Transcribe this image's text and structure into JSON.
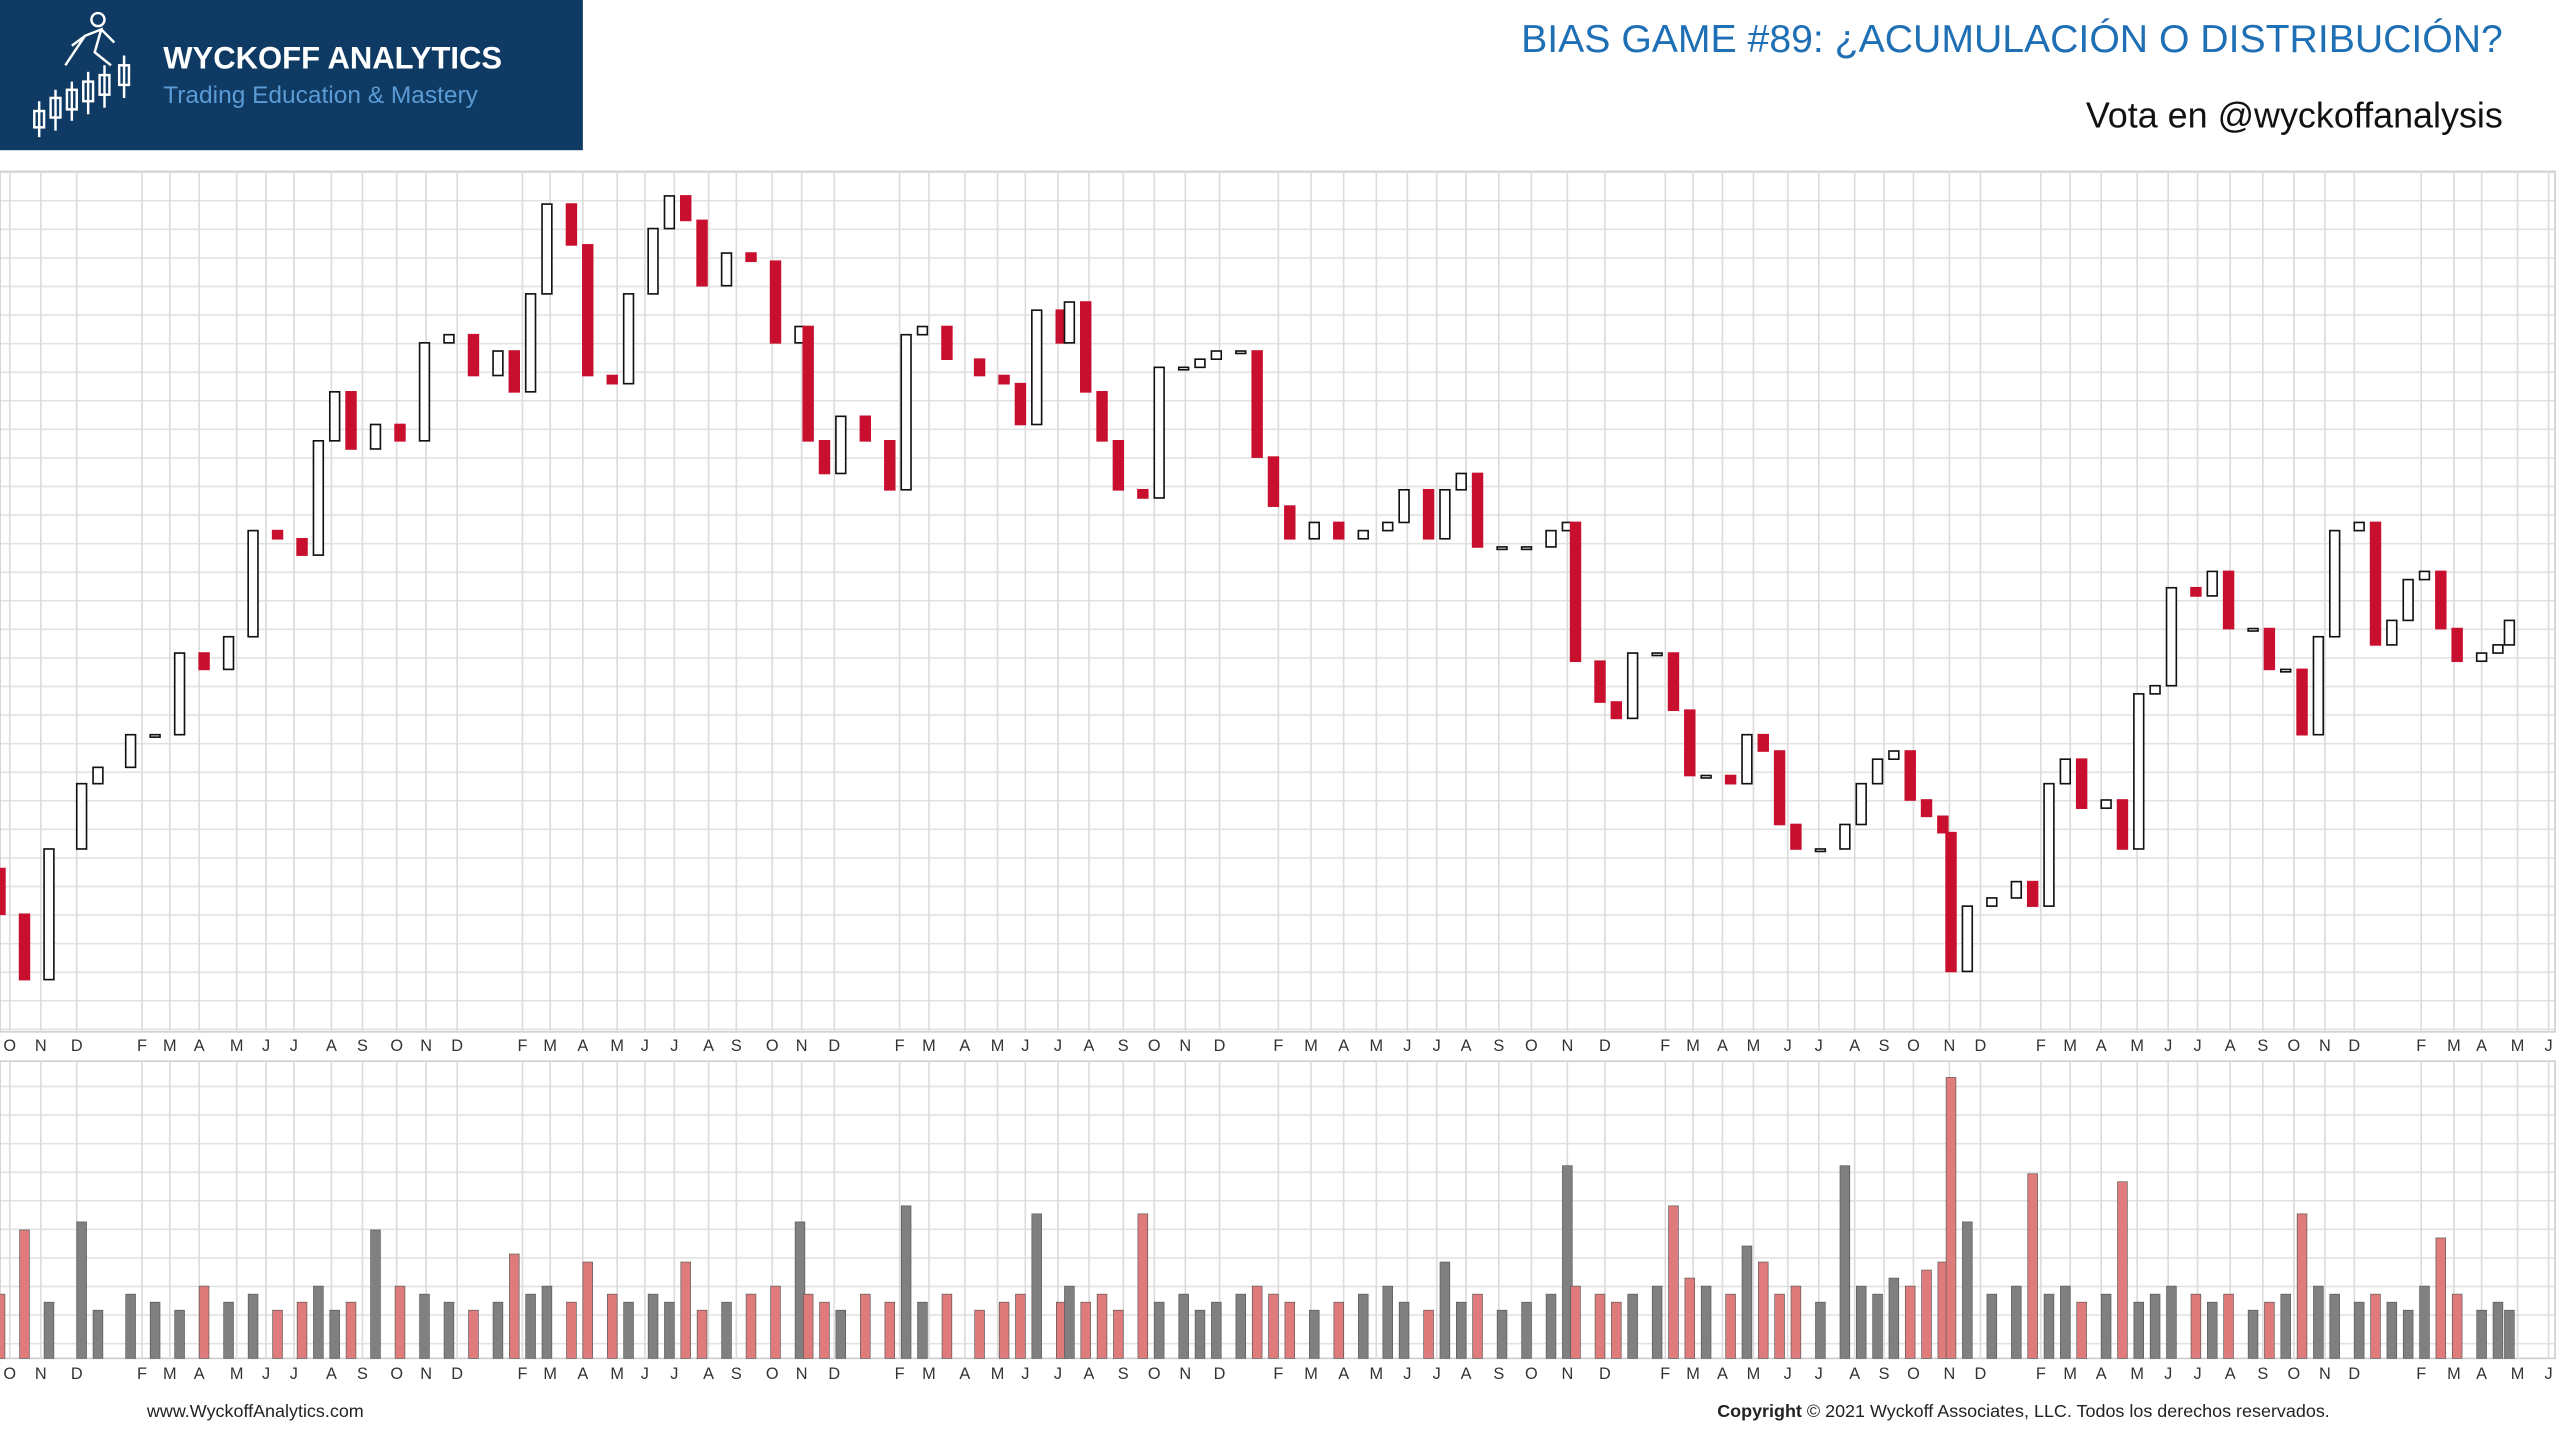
{
  "header": {
    "brand": "WYCKOFF ANALYTICS",
    "tagline": "Trading Education & Mastery"
  },
  "footer": {
    "website": "www.WyckoffAnalytics.com",
    "copyright_label": "Copyright",
    "copyright_text": "© 2021 Wyckoff Associates, LLC. Todos los derechos reservados."
  },
  "chart_data": {
    "type": "candlestick",
    "title": "BIAS GAME #89: ¿ACUMULACIÓN O DISTRIBUCIÓN?",
    "subtitle": "Vota en @wyckoffanalysis",
    "grid": true,
    "up_color": "#ffffff",
    "down_color": "#c8102e",
    "up_volume_color": "#808080",
    "down_volume_color": "#e07b7b",
    "xlim": [
      0,
      1560
    ],
    "ylim": [
      0,
      527
    ],
    "volume_ylim": [
      0,
      180
    ],
    "xticks": [
      {
        "value": 6,
        "label": "O"
      },
      {
        "value": 25,
        "label": "N"
      },
      {
        "value": 47,
        "label": "D"
      },
      {
        "value": 87,
        "label": "F"
      },
      {
        "value": 104,
        "label": "M"
      },
      {
        "value": 122,
        "label": "A"
      },
      {
        "value": 145,
        "label": "M"
      },
      {
        "value": 163,
        "label": "J"
      },
      {
        "value": 180,
        "label": "J"
      },
      {
        "value": 203,
        "label": "A"
      },
      {
        "value": 222,
        "label": "S"
      },
      {
        "value": 243,
        "label": "O"
      },
      {
        "value": 261,
        "label": "N"
      },
      {
        "value": 280,
        "label": "D"
      },
      {
        "value": 320,
        "label": "F"
      },
      {
        "value": 337,
        "label": "M"
      },
      {
        "value": 357,
        "label": "A"
      },
      {
        "value": 378,
        "label": "M"
      },
      {
        "value": 395,
        "label": "J"
      },
      {
        "value": 413,
        "label": "J"
      },
      {
        "value": 434,
        "label": "A"
      },
      {
        "value": 451,
        "label": "S"
      },
      {
        "value": 473,
        "label": "O"
      },
      {
        "value": 491,
        "label": "N"
      },
      {
        "value": 511,
        "label": "D"
      },
      {
        "value": 551,
        "label": "F"
      },
      {
        "value": 569,
        "label": "M"
      },
      {
        "value": 591,
        "label": "A"
      },
      {
        "value": 611,
        "label": "M"
      },
      {
        "value": 628,
        "label": "J"
      },
      {
        "value": 648,
        "label": "J"
      },
      {
        "value": 667,
        "label": "A"
      },
      {
        "value": 688,
        "label": "S"
      },
      {
        "value": 707,
        "label": "O"
      },
      {
        "value": 726,
        "label": "N"
      },
      {
        "value": 747,
        "label": "D"
      },
      {
        "value": 783,
        "label": "F"
      },
      {
        "value": 803,
        "label": "M"
      },
      {
        "value": 823,
        "label": "A"
      },
      {
        "value": 843,
        "label": "M"
      },
      {
        "value": 862,
        "label": "J"
      },
      {
        "value": 880,
        "label": "J"
      },
      {
        "value": 898,
        "label": "A"
      },
      {
        "value": 918,
        "label": "S"
      },
      {
        "value": 938,
        "label": "O"
      },
      {
        "value": 960,
        "label": "N"
      },
      {
        "value": 983,
        "label": "D"
      },
      {
        "value": 1020,
        "label": "F"
      },
      {
        "value": 1037,
        "label": "M"
      },
      {
        "value": 1055,
        "label": "A"
      },
      {
        "value": 1074,
        "label": "M"
      },
      {
        "value": 1095,
        "label": "J"
      },
      {
        "value": 1114,
        "label": "J"
      },
      {
        "value": 1136,
        "label": "A"
      },
      {
        "value": 1154,
        "label": "S"
      },
      {
        "value": 1172,
        "label": "O"
      },
      {
        "value": 1194,
        "label": "N"
      },
      {
        "value": 1213,
        "label": "D"
      },
      {
        "value": 1250,
        "label": "F"
      },
      {
        "value": 1268,
        "label": "M"
      },
      {
        "value": 1287,
        "label": "A"
      },
      {
        "value": 1309,
        "label": "M"
      },
      {
        "value": 1328,
        "label": "J"
      },
      {
        "value": 1346,
        "label": "J"
      },
      {
        "value": 1366,
        "label": "A"
      },
      {
        "value": 1386,
        "label": "S"
      },
      {
        "value": 1405,
        "label": "O"
      },
      {
        "value": 1424,
        "label": "N"
      },
      {
        "value": 1442,
        "label": "D"
      },
      {
        "value": 1483,
        "label": "F"
      },
      {
        "value": 1503,
        "label": "M"
      },
      {
        "value": 1520,
        "label": "A"
      },
      {
        "value": 1542,
        "label": "M"
      },
      {
        "value": 1561,
        "label": "J"
      }
    ],
    "x": [
      0,
      15,
      30,
      50,
      60,
      80,
      95,
      110,
      125,
      140,
      155,
      170,
      185,
      195,
      205,
      215,
      230,
      245,
      260,
      275,
      290,
      305,
      315,
      325,
      335,
      350,
      360,
      375,
      385,
      400,
      410,
      420,
      430,
      445,
      460,
      475,
      490,
      495,
      505,
      515,
      530,
      545,
      555,
      565,
      580,
      600,
      615,
      625,
      635,
      650,
      655,
      665,
      675,
      685,
      700,
      710,
      725,
      735,
      745,
      760,
      770,
      780,
      790,
      805,
      820,
      835,
      850,
      860,
      875,
      885,
      895,
      905,
      920,
      935,
      950,
      960,
      965,
      980,
      990,
      1000,
      1015,
      1025,
      1035,
      1045,
      1060,
      1070,
      1080,
      1090,
      1100,
      1115,
      1130,
      1140,
      1150,
      1160,
      1170,
      1180,
      1190,
      1195,
      1205,
      1220,
      1235,
      1245,
      1255,
      1265,
      1275,
      1290,
      1300,
      1310,
      1320,
      1330,
      1345,
      1355,
      1365,
      1380,
      1390,
      1400,
      1410,
      1420,
      1430,
      1445,
      1455,
      1465,
      1475,
      1485,
      1495,
      1505,
      1520,
      1530,
      1537
    ],
    "open": [
      100,
      72,
      32,
      112,
      152,
      162,
      182,
      182,
      232,
      222,
      242,
      307,
      302,
      292,
      362,
      392,
      357,
      372,
      362,
      422,
      427,
      402,
      417,
      392,
      452,
      507,
      482,
      402,
      397,
      452,
      492,
      512,
      497,
      457,
      477,
      472,
      422,
      432,
      362,
      342,
      377,
      362,
      332,
      427,
      432,
      412,
      402,
      397,
      372,
      442,
      422,
      447,
      392,
      362,
      332,
      327,
      407,
      407,
      412,
      417,
      417,
      352,
      322,
      302,
      312,
      302,
      307,
      312,
      332,
      302,
      332,
      342,
      297,
      297,
      297,
      307,
      312,
      227,
      202,
      192,
      232,
      232,
      197,
      157,
      157,
      152,
      182,
      172,
      127,
      112,
      112,
      127,
      152,
      167,
      172,
      142,
      132,
      122,
      37,
      77,
      82,
      92,
      77,
      152,
      167,
      137,
      142,
      112,
      207,
      212,
      272,
      267,
      282,
      247,
      247,
      222,
      222,
      182,
      242,
      307,
      312,
      237,
      252,
      277,
      282,
      247,
      227,
      232,
      237
    ],
    "close": [
      72,
      32,
      112,
      152,
      162,
      182,
      182,
      232,
      222,
      242,
      307,
      302,
      292,
      362,
      392,
      357,
      372,
      362,
      422,
      427,
      402,
      417,
      392,
      452,
      507,
      482,
      402,
      397,
      452,
      492,
      512,
      497,
      457,
      477,
      472,
      422,
      432,
      362,
      342,
      377,
      362,
      332,
      427,
      432,
      412,
      402,
      397,
      372,
      442,
      422,
      447,
      392,
      362,
      332,
      327,
      407,
      407,
      412,
      417,
      417,
      352,
      322,
      302,
      312,
      302,
      307,
      312,
      332,
      302,
      332,
      342,
      297,
      297,
      297,
      307,
      312,
      227,
      202,
      192,
      232,
      232,
      197,
      157,
      157,
      152,
      182,
      172,
      127,
      112,
      112,
      127,
      152,
      167,
      172,
      142,
      132,
      122,
      37,
      77,
      82,
      92,
      77,
      152,
      167,
      137,
      142,
      112,
      207,
      212,
      272,
      267,
      282,
      247,
      247,
      222,
      222,
      182,
      242,
      307,
      312,
      237,
      252,
      277,
      282,
      247,
      227,
      232,
      237,
      252
    ],
    "volume": [
      40,
      80,
      35,
      85,
      30,
      40,
      35,
      30,
      45,
      35,
      40,
      30,
      35,
      45,
      30,
      35,
      80,
      45,
      40,
      35,
      30,
      35,
      65,
      40,
      45,
      35,
      60,
      40,
      35,
      40,
      35,
      60,
      30,
      35,
      40,
      45,
      85,
      40,
      35,
      30,
      40,
      35,
      95,
      35,
      40,
      30,
      35,
      40,
      90,
      35,
      45,
      35,
      40,
      30,
      90,
      35,
      40,
      30,
      35,
      40,
      45,
      40,
      35,
      30,
      35,
      40,
      45,
      35,
      30,
      60,
      35,
      40,
      30,
      35,
      40,
      120,
      45,
      40,
      35,
      40,
      45,
      95,
      50,
      45,
      40,
      70,
      60,
      40,
      45,
      35,
      120,
      45,
      40,
      50,
      45,
      55,
      60,
      175,
      85,
      40,
      45,
      115,
      40,
      45,
      35,
      40,
      110,
      35,
      40,
      45,
      40,
      35,
      40,
      30,
      35,
      40,
      90,
      45,
      40,
      35,
      40,
      35,
      30,
      45,
      75,
      40,
      30,
      35,
      30
    ]
  }
}
